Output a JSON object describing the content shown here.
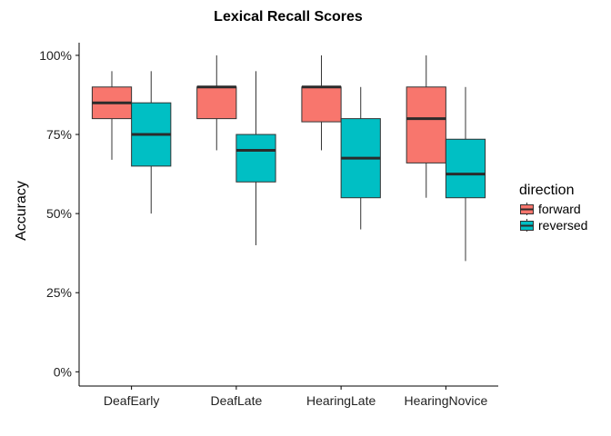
{
  "chart_data": {
    "type": "boxplot",
    "title": "Lexical Recall Scores",
    "xlabel": "",
    "ylabel": "Accuracy",
    "ylim": [
      -0.045,
      1.04
    ],
    "yticks": [
      0,
      0.25,
      0.5,
      0.75,
      1.0
    ],
    "ytick_labels": [
      "0%",
      "25%",
      "50%",
      "75%",
      "100%"
    ],
    "categories": [
      "DeafEarly",
      "DeafLate",
      "HearingLate",
      "HearingNovice"
    ],
    "legend": {
      "title": "direction",
      "position": "right"
    },
    "grid": false,
    "series": [
      {
        "name": "forward",
        "color": "#F8766D",
        "boxes": [
          {
            "category": "DeafEarly",
            "min": 0.67,
            "q1": 0.8,
            "median": 0.85,
            "q3": 0.9,
            "max": 0.95
          },
          {
            "category": "DeafLate",
            "min": 0.7,
            "q1": 0.8,
            "median": 0.9,
            "q3": 0.9,
            "max": 1.0
          },
          {
            "category": "HearingLate",
            "min": 0.7,
            "q1": 0.79,
            "median": 0.9,
            "q3": 0.9,
            "max": 1.0
          },
          {
            "category": "HearingNovice",
            "min": 0.55,
            "q1": 0.66,
            "median": 0.8,
            "q3": 0.9,
            "max": 1.0
          }
        ]
      },
      {
        "name": "reversed",
        "color": "#00BFC4",
        "boxes": [
          {
            "category": "DeafEarly",
            "min": 0.5,
            "q1": 0.65,
            "median": 0.75,
            "q3": 0.85,
            "max": 0.95
          },
          {
            "category": "DeafLate",
            "min": 0.4,
            "q1": 0.6,
            "median": 0.7,
            "q3": 0.75,
            "max": 0.95
          },
          {
            "category": "HearingLate",
            "min": 0.45,
            "q1": 0.55,
            "median": 0.675,
            "q3": 0.8,
            "max": 0.9
          },
          {
            "category": "HearingNovice",
            "min": 0.35,
            "q1": 0.55,
            "median": 0.625,
            "q3": 0.735,
            "max": 0.9
          }
        ]
      }
    ]
  }
}
